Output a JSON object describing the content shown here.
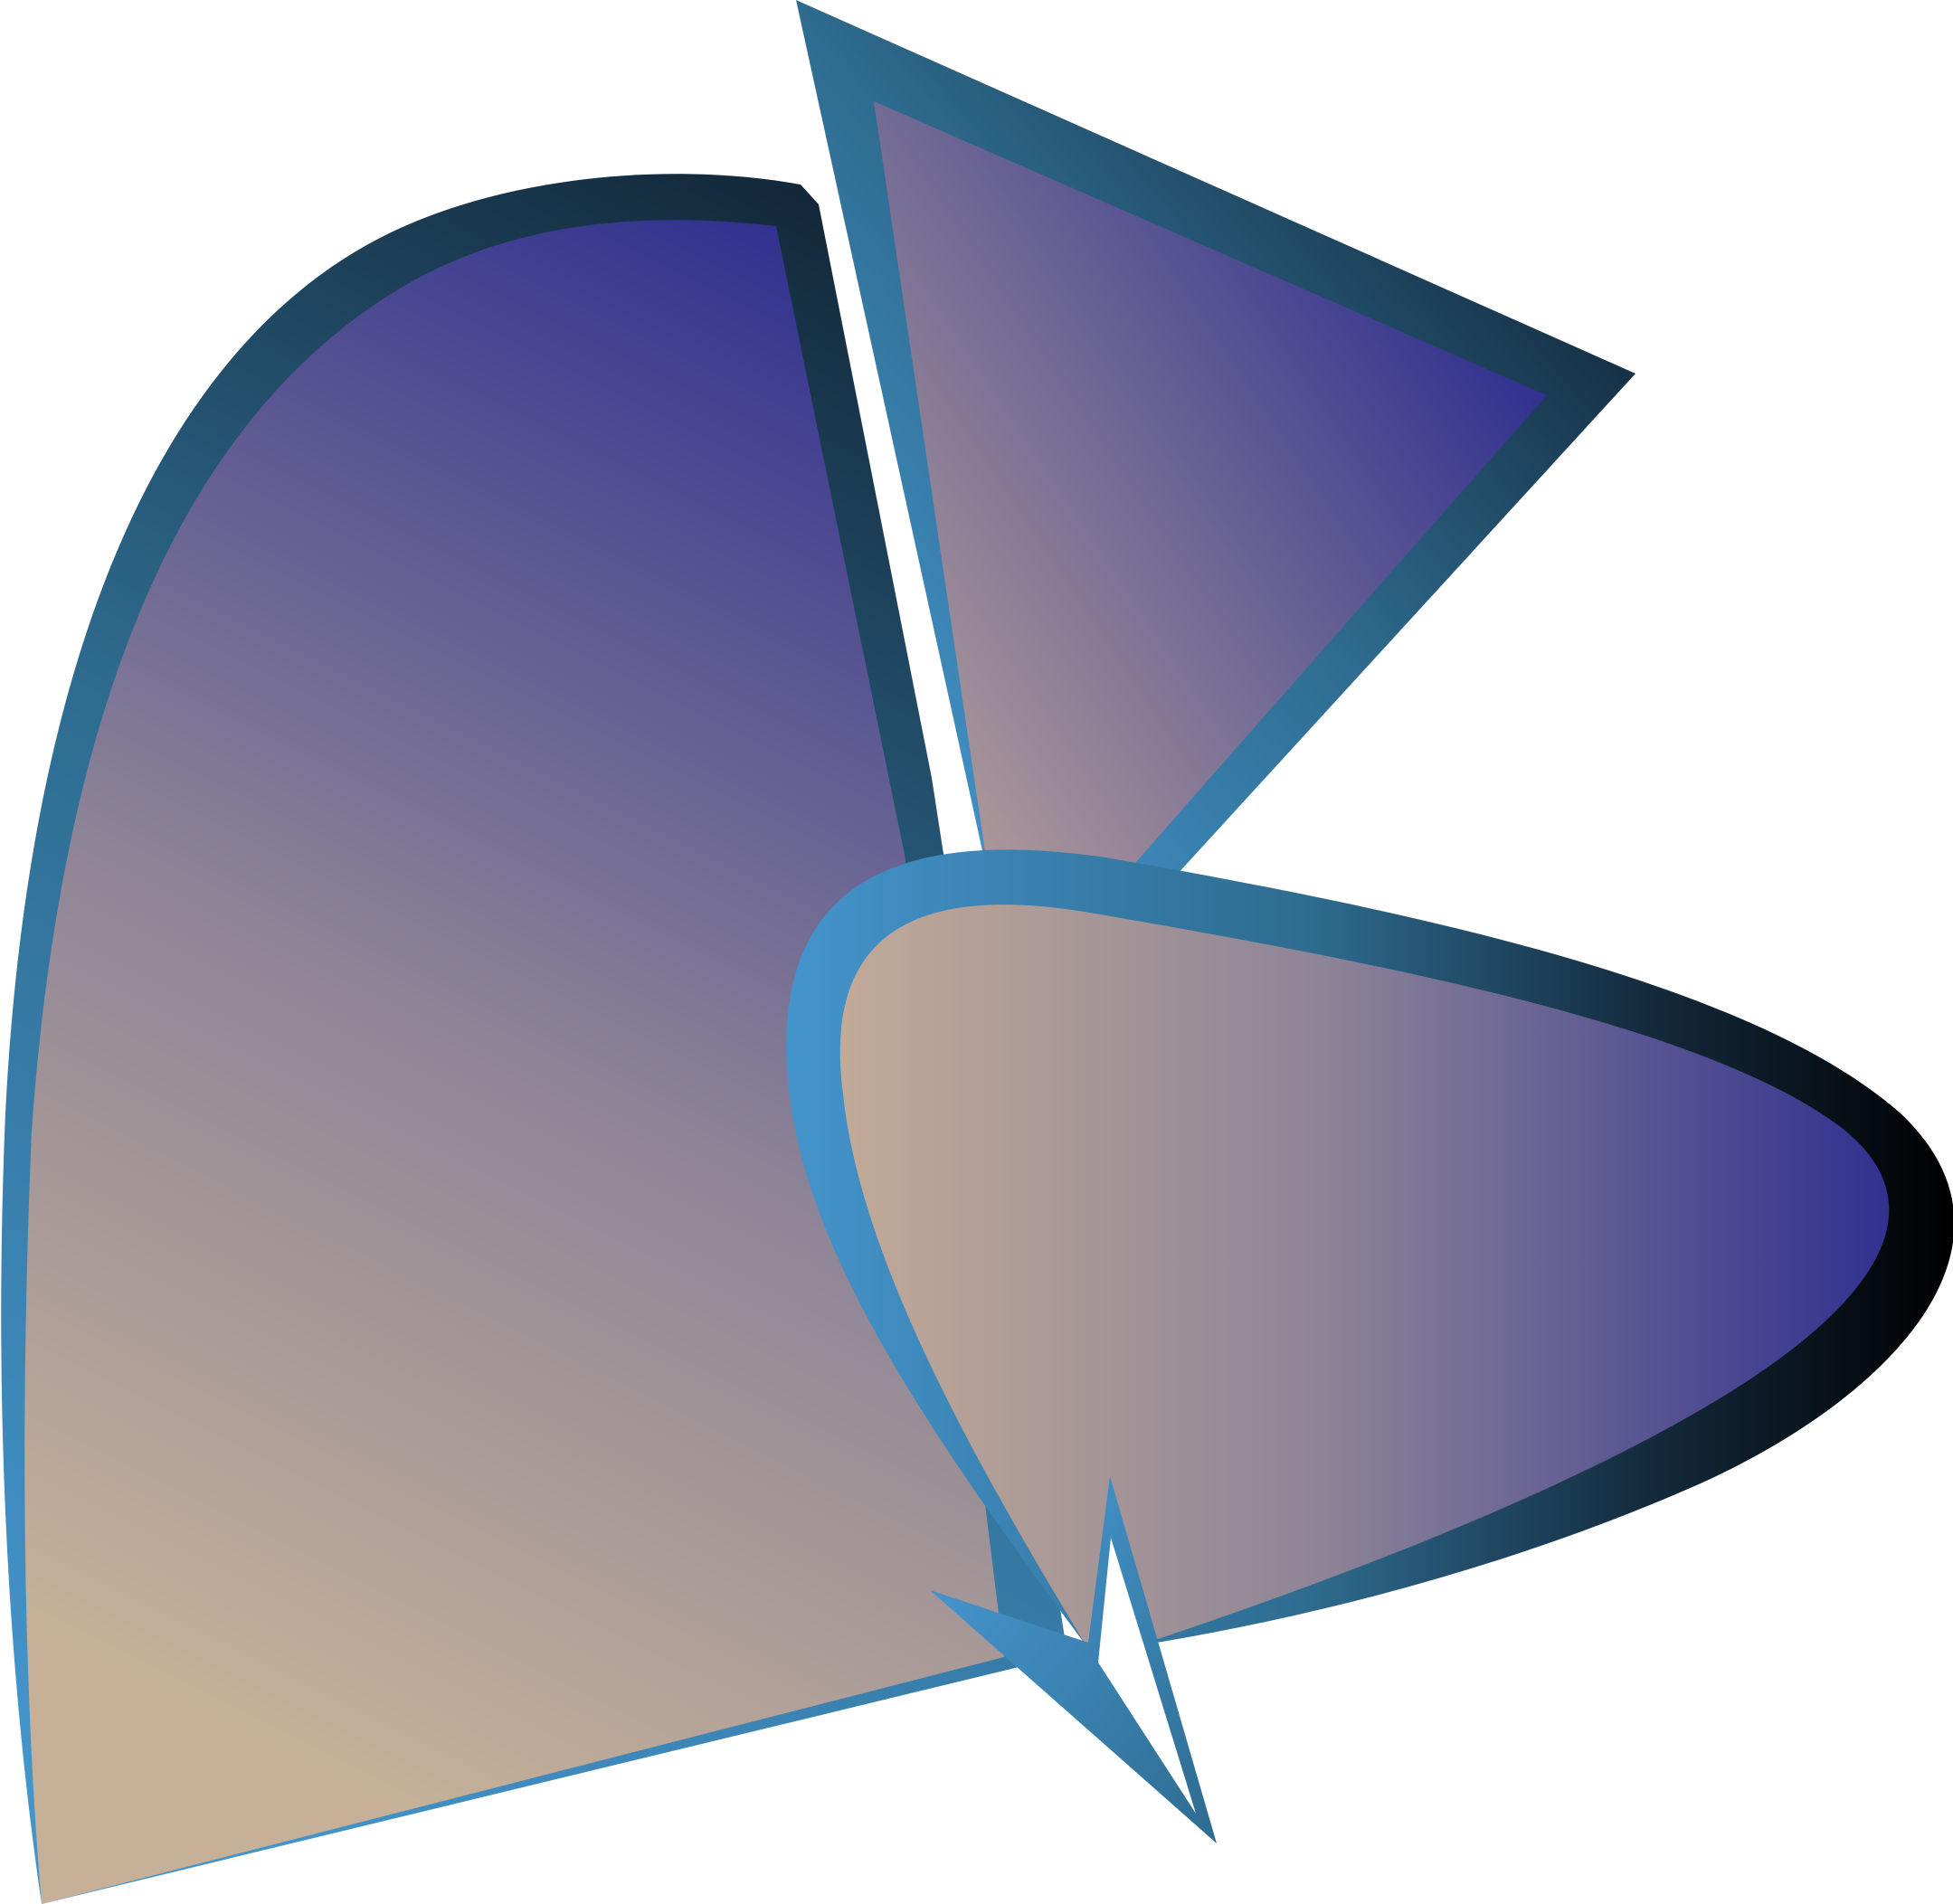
{
  "artwork": {
    "colors": {
      "background": "#ffffff",
      "fill_dark": "#2e2e8f",
      "fill_mid": "#8d8497",
      "fill_light": "#c6b198",
      "stroke_light": "#4494cc",
      "stroke_mid": "#2e6b8f",
      "stroke_dark": "#13283a",
      "stroke_black": "#000000"
    },
    "shapes": [
      "left-petal",
      "top-triangle",
      "right-blade",
      "bottom-arrow"
    ]
  }
}
